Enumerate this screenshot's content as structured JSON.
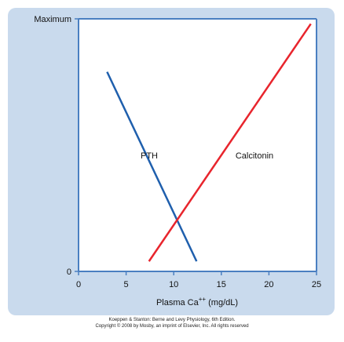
{
  "chart_data": {
    "type": "line",
    "xlabel_text": "Plasma Ca",
    "xlabel_sup": "++",
    "xlabel_unit": "(mg/dL)",
    "ylabel": "",
    "x_ticks": [
      0,
      5,
      10,
      15,
      20,
      25
    ],
    "xlim": [
      0,
      25
    ],
    "y_tick_labels": [
      {
        "value": 0,
        "label": "0"
      },
      {
        "value": 1,
        "label": "Maximum"
      }
    ],
    "ylim": [
      0,
      1
    ],
    "grid": false,
    "series": [
      {
        "name": "PTH",
        "color": "#1f5fad",
        "x": [
          3.0,
          12.4
        ],
        "y": [
          0.79,
          0.04
        ]
      },
      {
        "name": "Calcitonin",
        "color": "#e8252d",
        "x": [
          7.4,
          24.4
        ],
        "y": [
          0.04,
          0.98
        ]
      }
    ]
  },
  "credits": {
    "line1": "Koeppen & Stanton: Berne and Levy Physiology, 6th Edition.",
    "line2": "Copyright © 2008 by Mosby, an imprint of Elsevier, Inc. All rights reserved"
  },
  "colors": {
    "panel_bg": "#c9daed",
    "axis": "#4a7fc1",
    "plot_bg": "#ffffff"
  }
}
